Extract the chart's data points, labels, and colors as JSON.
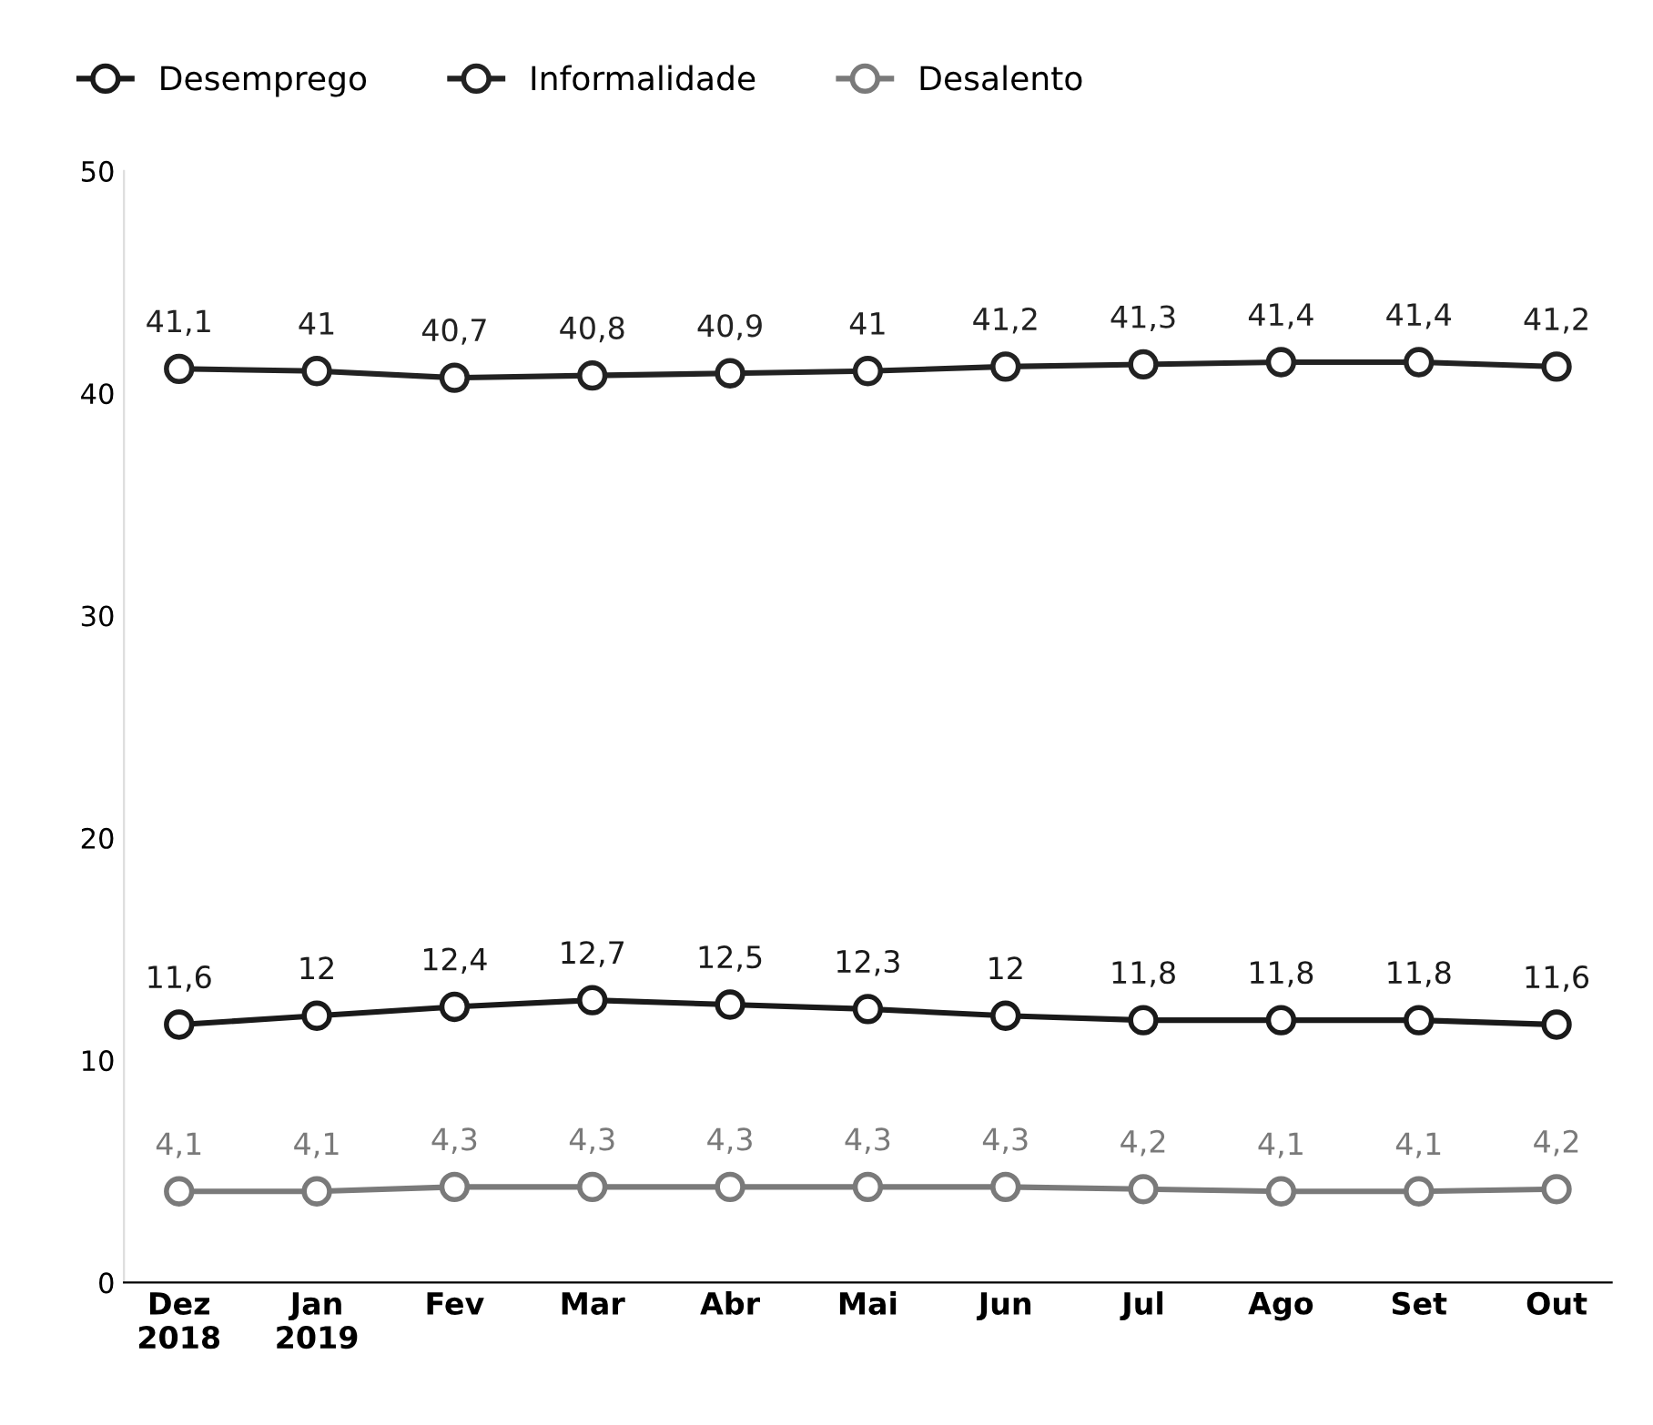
{
  "chart_data": {
    "type": "line",
    "categories": [
      "Dez\n2018",
      "Jan\n2019",
      "Fev",
      "Mar",
      "Abr",
      "Mai",
      "Jun",
      "Jul",
      "Ago",
      "Set",
      "Out"
    ],
    "series": [
      {
        "name": "Desemprego",
        "color": "#1a1a1a",
        "values": [
          11.6,
          12,
          12.4,
          12.7,
          12.5,
          12.3,
          12,
          11.8,
          11.8,
          11.8,
          11.6
        ],
        "value_labels": [
          "11,6",
          "12",
          "12,4",
          "12,7",
          "12,5",
          "12,3",
          "12",
          "11,8",
          "11,8",
          "11,8",
          "11,6"
        ]
      },
      {
        "name": "Informalidade",
        "color": "#222222",
        "values": [
          41.1,
          41,
          40.7,
          40.8,
          40.9,
          41,
          41.2,
          41.3,
          41.4,
          41.4,
          41.2
        ],
        "value_labels": [
          "41,1",
          "41",
          "40,7",
          "40,8",
          "40,9",
          "41",
          "41,2",
          "41,3",
          "41,4",
          "41,4",
          "41,2"
        ]
      },
      {
        "name": "Desalento",
        "color": "#7a7a7a",
        "values": [
          4.1,
          4.1,
          4.3,
          4.3,
          4.3,
          4.3,
          4.3,
          4.2,
          4.1,
          4.1,
          4.2
        ],
        "value_labels": [
          "4,1",
          "4,1",
          "4,3",
          "4,3",
          "4,3",
          "4,3",
          "4,3",
          "4,2",
          "4,1",
          "4,1",
          "4,2"
        ]
      }
    ],
    "ylim": [
      0,
      50
    ],
    "yticks": [
      0,
      10,
      20,
      30,
      40,
      50
    ],
    "grid": false,
    "legend": "top left",
    "marker": "circle",
    "line_style": "solid"
  }
}
